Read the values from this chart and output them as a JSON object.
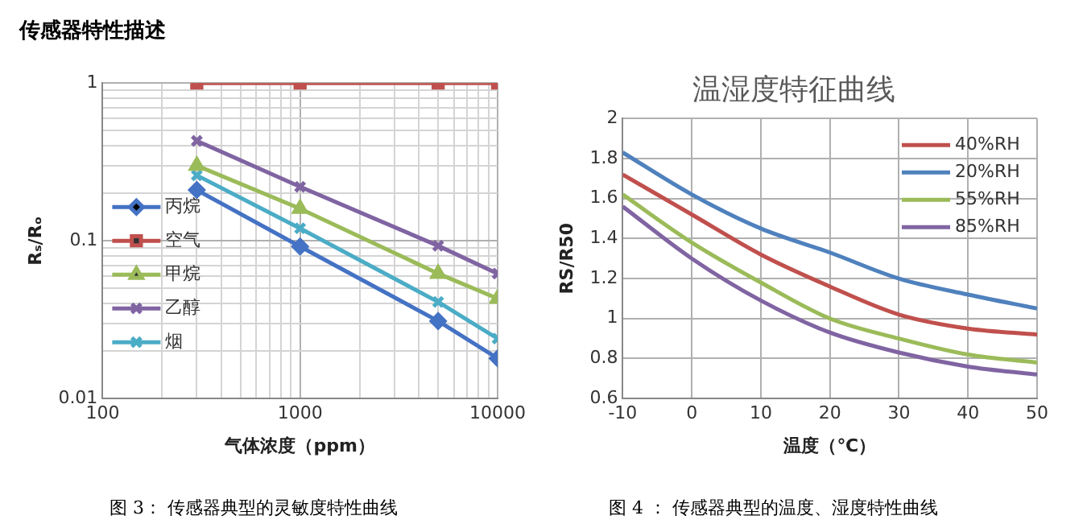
{
  "chart_data": [
    {
      "type": "line",
      "title": "传感器特性描述",
      "xlabel": "气体浓度（ppm）",
      "ylabel": "Rₛ/Rₒ",
      "log": "xy",
      "x": [
        300,
        1000,
        5000,
        10000
      ],
      "xlim": [
        100,
        10000
      ],
      "xticks": [
        100,
        1000,
        10000
      ],
      "ylim": [
        0.01,
        1
      ],
      "yticks": [
        0.01,
        0.1,
        1
      ],
      "grid": true,
      "legend": "center left",
      "annotations": [
        "图 3：   传感器典型的灵敏度特性曲线"
      ],
      "series": [
        {
          "name": "丙烷",
          "color": "#4472c4",
          "marker": "diamond",
          "values": [
            0.21,
            0.092,
            0.031,
            0.018
          ]
        },
        {
          "name": "空气",
          "color": "#c0504d",
          "marker": "square",
          "values": [
            1,
            1,
            1,
            1
          ]
        },
        {
          "name": "甲烷",
          "color": "#9bbb59",
          "marker": "triangle",
          "values": [
            0.3,
            0.16,
            0.062,
            0.043
          ]
        },
        {
          "name": "乙醇",
          "color": "#8064a2",
          "marker": "cross",
          "values": [
            0.43,
            0.22,
            0.093,
            0.062
          ]
        },
        {
          "name": "烟",
          "color": "#4bacc6",
          "marker": "cross",
          "values": [
            0.26,
            0.12,
            0.041,
            0.024
          ]
        }
      ]
    },
    {
      "type": "line",
      "title": "温湿度特征曲线",
      "xlabel": "温度（℃）",
      "ylabel": "RS/R50",
      "x": [
        -10,
        0,
        10,
        20,
        30,
        40,
        50
      ],
      "xlim": [
        -10,
        50
      ],
      "xticks": [
        -10,
        0,
        10,
        20,
        30,
        40,
        50
      ],
      "ylim": [
        0.6,
        2
      ],
      "yticks": [
        0.6,
        0.8,
        1,
        1.2,
        1.4,
        1.6,
        1.8,
        2
      ],
      "grid": true,
      "legend": "top right",
      "marker": "none",
      "annotations": [
        "图 4 ：  传感器典型的温度、湿度特性曲线"
      ],
      "series": [
        {
          "name": "40%RH",
          "color": "#c0504d",
          "values": [
            1.72,
            1.52,
            1.32,
            1.16,
            1.02,
            0.95,
            0.92
          ]
        },
        {
          "name": "20%RH",
          "color": "#4f81bd",
          "values": [
            1.83,
            1.62,
            1.45,
            1.33,
            1.2,
            1.12,
            1.05
          ]
        },
        {
          "name": "55%RH",
          "color": "#9bbb59",
          "values": [
            1.62,
            1.38,
            1.18,
            1.0,
            0.9,
            0.82,
            0.78
          ]
        },
        {
          "name": "85%RH",
          "color": "#8064a2",
          "values": [
            1.56,
            1.3,
            1.09,
            0.93,
            0.83,
            0.76,
            0.72
          ]
        }
      ]
    }
  ]
}
